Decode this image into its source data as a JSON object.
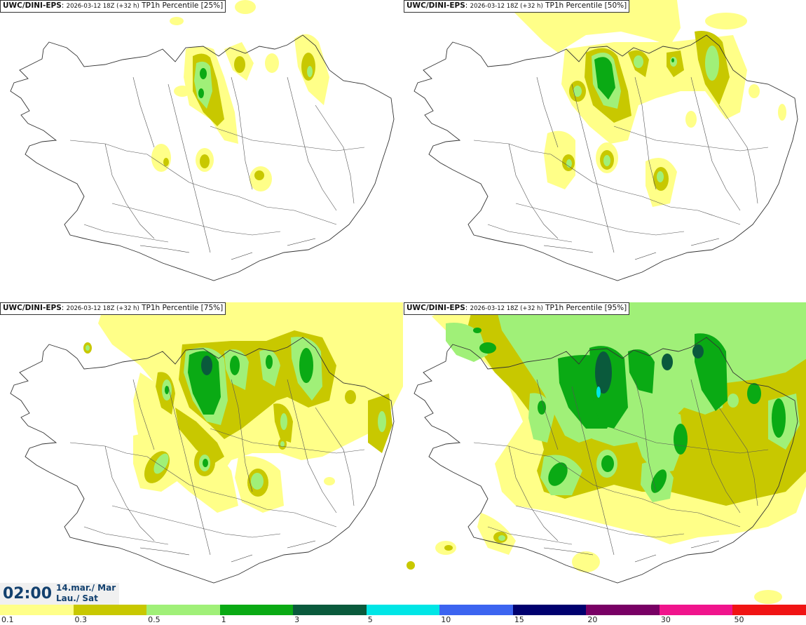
{
  "panels": [
    {
      "model": "UWC/DINI-EPS",
      "run": "2026-03-12 18Z (+32 h)",
      "product": "TP1h Percentile [25%]"
    },
    {
      "model": "UWC/DINI-EPS",
      "run": "2026-03-12 18Z (+32 h)",
      "product": "TP1h Percentile [50%]"
    },
    {
      "model": "UWC/DINI-EPS",
      "run": "2026-03-12 18Z (+32 h)",
      "product": "TP1h Percentile [75%]"
    },
    {
      "model": "UWC/DINI-EPS",
      "run": "2026-03-12 18Z (+32 h)",
      "product": "TP1h Percentile [95%]"
    }
  ],
  "valid_time": {
    "time": "02:00",
    "date_line1": "14.mar./ Mar",
    "date_line2": "Lau./ Sat"
  },
  "colorbar": {
    "levels": [
      "0.1",
      "0.3",
      "0.5",
      "1",
      "3",
      "5",
      "10",
      "15",
      "20",
      "30",
      "50"
    ],
    "colors": [
      "#ffff88",
      "#c8c800",
      "#a0f078",
      "#0aaa14",
      "#0a5a3c",
      "#00e6e6",
      "#3c64f0",
      "#00006e",
      "#780064",
      "#f0148c",
      "#f01414"
    ]
  },
  "colors": {
    "shade1": "#ffff88",
    "shade2": "#c8c800",
    "shade3": "#a0f078",
    "shade4": "#0aaa14",
    "shade5": "#0a5a3c",
    "shade6": "#00e6e6",
    "coast": "#333333"
  }
}
